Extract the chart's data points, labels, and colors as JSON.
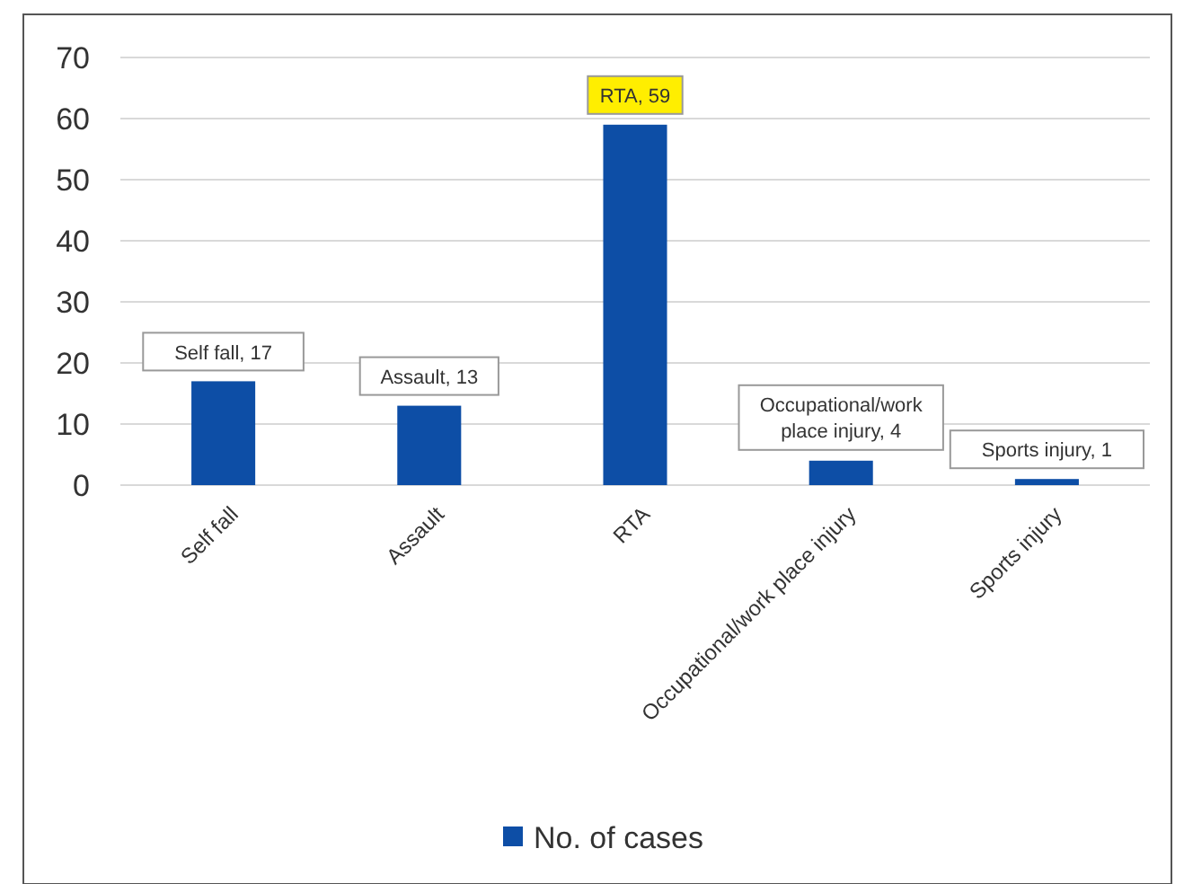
{
  "chart_data": {
    "type": "bar",
    "categories": [
      "Self fall",
      "Assault",
      "RTA",
      "Occupational/work place injury",
      "Sports injury"
    ],
    "series": [
      {
        "name": "No. of cases",
        "color": "#0d4ea6",
        "values": [
          17,
          13,
          59,
          4,
          1
        ],
        "value_labels": [
          "Self fall, 17",
          "Assault, 13",
          "RTA, 59",
          "Occupational/work place injury, 4",
          "Sports injury, 1"
        ]
      }
    ],
    "ylim": [
      0,
      70
    ],
    "yticks": [
      0,
      10,
      20,
      30,
      40,
      50,
      60,
      70
    ],
    "grid": "y",
    "legend": "bottom"
  }
}
